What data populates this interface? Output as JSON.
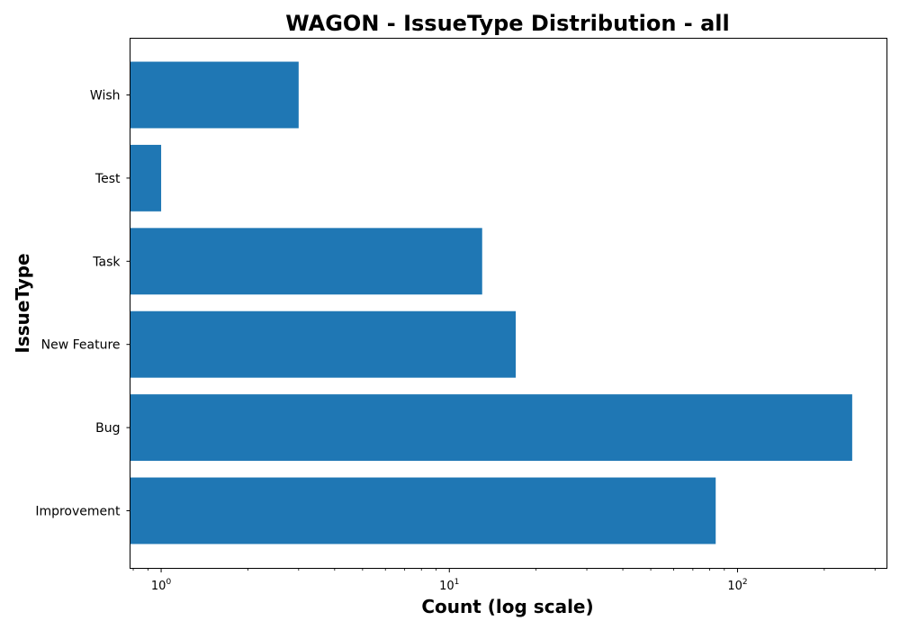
{
  "chart_data": {
    "type": "bar",
    "orientation": "horizontal",
    "title": "WAGON - IssueType Distribution - all",
    "xlabel": "Count (log scale)",
    "ylabel": "IssueType",
    "xscale": "log",
    "xlim": [
      0.78,
      330
    ],
    "categories": [
      "Improvement",
      "Bug",
      "New Feature",
      "Task",
      "Test",
      "Wish"
    ],
    "values": [
      84,
      250,
      17,
      13,
      1,
      3
    ],
    "x_major_ticks": [
      {
        "base": "10",
        "exp": "0",
        "value": 1
      },
      {
        "base": "10",
        "exp": "1",
        "value": 10
      },
      {
        "base": "10",
        "exp": "2",
        "value": 100
      }
    ],
    "bar_color": "#1f77b4",
    "grid": false,
    "legend": "none"
  }
}
